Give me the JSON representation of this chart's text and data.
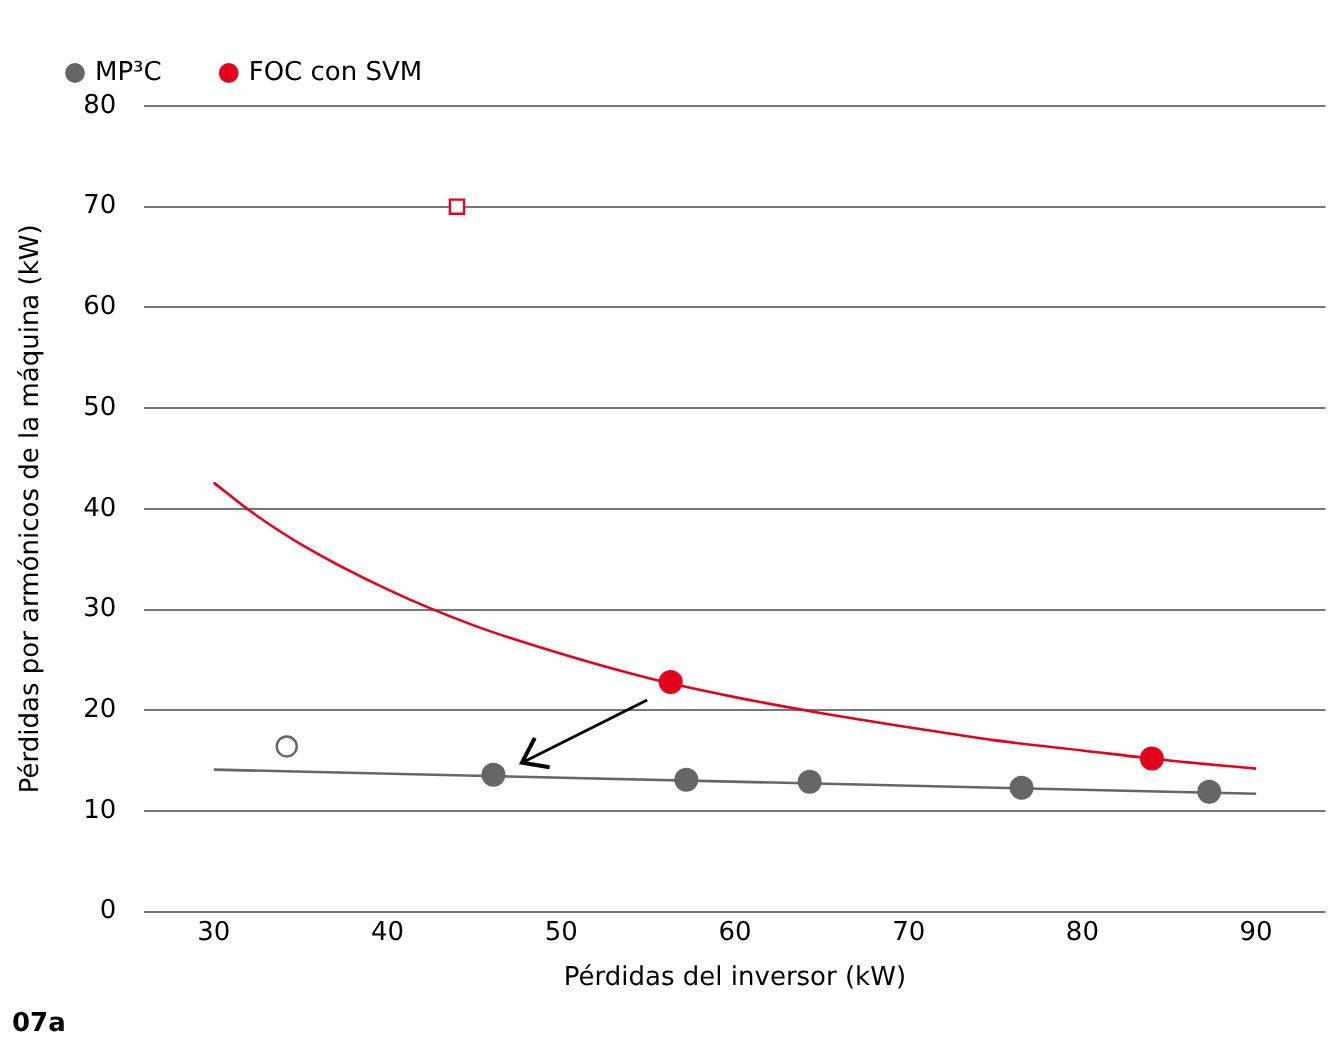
{
  "chart_data": {
    "type": "scatter",
    "xlabel": "Pérdidas del inversor (kW)",
    "ylabel": "Pérdidas por armónicos de la máquina (kW)",
    "annotations": [
      "07a"
    ],
    "xlim": [
      26,
      94
    ],
    "xticks": [
      30,
      40,
      50,
      60,
      70,
      80,
      90
    ],
    "ylim": [
      0,
      80
    ],
    "yticks": [
      0,
      10,
      20,
      30,
      40,
      50,
      60,
      70,
      80
    ],
    "grid": "y",
    "legend": "top left",
    "series": [
      {
        "name": "MP³C",
        "type": "scatter",
        "color": "#666666",
        "marker": "circle",
        "x": [
          46.1,
          57.2,
          64.3,
          76.5,
          87.3
        ],
        "values": [
          13.6,
          13.1,
          12.9,
          12.3,
          11.9
        ]
      },
      {
        "type": "line",
        "color": "#666666",
        "marker": "none",
        "x": [
          30,
          90
        ],
        "values": [
          14.1,
          11.7
        ]
      },
      {
        "type": "scatter",
        "color": "#666666",
        "marker": "circle",
        "x": [
          34.2
        ],
        "values": [
          16.4
        ]
      },
      {
        "name": "FOC con SVM",
        "type": "scatter",
        "color": "#e3001b",
        "marker": "circle",
        "x": [
          56.3,
          84
        ],
        "values": [
          22.8,
          15.2
        ]
      },
      {
        "type": "line",
        "color": "#e3001b",
        "marker": "none",
        "x": [
          30,
          32,
          35,
          40,
          45,
          50,
          55,
          60,
          65,
          70,
          75,
          80,
          85,
          90
        ],
        "values": [
          42.6,
          39.9,
          36.5,
          32.0,
          28.4,
          25.6,
          23.2,
          21.3,
          19.7,
          18.3,
          17.0,
          16.0,
          15.0,
          14.2
        ]
      },
      {
        "type": "scatter",
        "color": "#e3001b",
        "marker": "square",
        "x": [
          44
        ],
        "values": [
          70
        ]
      }
    ]
  }
}
